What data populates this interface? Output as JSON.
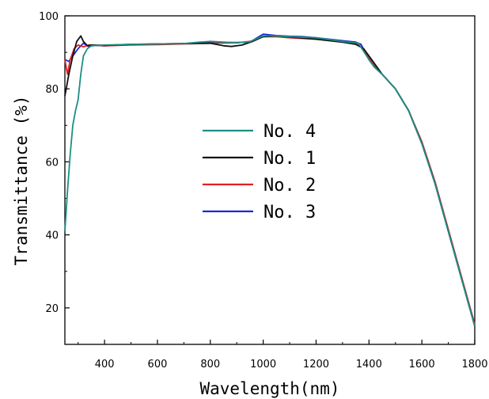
{
  "chart_data": {
    "type": "line",
    "title": "",
    "xlabel": "Wavelength(nm)",
    "ylabel": "Transmittance (%)",
    "xlim": [
      250,
      1800
    ],
    "ylim": [
      10,
      100
    ],
    "xticks": [
      400,
      600,
      800,
      1000,
      1200,
      1400,
      1600,
      1800
    ],
    "yticks": [
      20,
      40,
      60,
      80,
      100
    ],
    "grid": false,
    "legend_position": "center",
    "series": [
      {
        "name": "No. 4",
        "color": "#1a8f84",
        "points": [
          [
            250,
            41
          ],
          [
            260,
            52
          ],
          [
            270,
            62
          ],
          [
            280,
            70
          ],
          [
            290,
            74
          ],
          [
            300,
            77
          ],
          [
            310,
            84
          ],
          [
            320,
            89
          ],
          [
            335,
            91
          ],
          [
            350,
            91.8
          ],
          [
            400,
            92
          ],
          [
            500,
            92.2
          ],
          [
            600,
            92.3
          ],
          [
            700,
            92.4
          ],
          [
            760,
            92.8
          ],
          [
            800,
            93
          ],
          [
            850,
            92.8
          ],
          [
            900,
            92.6
          ],
          [
            950,
            92.9
          ],
          [
            1000,
            94.5
          ],
          [
            1050,
            94.5
          ],
          [
            1100,
            94.3
          ],
          [
            1200,
            94
          ],
          [
            1300,
            93
          ],
          [
            1360,
            92.5
          ],
          [
            1400,
            88
          ],
          [
            1420,
            86
          ],
          [
            1450,
            84
          ],
          [
            1500,
            80
          ],
          [
            1550,
            74
          ],
          [
            1600,
            65
          ],
          [
            1650,
            54
          ],
          [
            1700,
            41
          ],
          [
            1750,
            28
          ],
          [
            1800,
            15
          ]
        ]
      },
      {
        "name": "No. 1",
        "color": "#111111",
        "points": [
          [
            250,
            78
          ],
          [
            265,
            84
          ],
          [
            280,
            89
          ],
          [
            295,
            93
          ],
          [
            310,
            94.5
          ],
          [
            320,
            93
          ],
          [
            335,
            91.8
          ],
          [
            350,
            92
          ],
          [
            400,
            91.9
          ],
          [
            500,
            92.2
          ],
          [
            600,
            92.3
          ],
          [
            700,
            92.4
          ],
          [
            800,
            92.5
          ],
          [
            850,
            91.8
          ],
          [
            880,
            91.6
          ],
          [
            920,
            92
          ],
          [
            960,
            93
          ],
          [
            1000,
            94.3
          ],
          [
            1050,
            94.5
          ],
          [
            1100,
            94.2
          ],
          [
            1200,
            93.6
          ],
          [
            1300,
            92.8
          ],
          [
            1350,
            92.2
          ],
          [
            1380,
            91
          ],
          [
            1400,
            89
          ],
          [
            1420,
            87
          ],
          [
            1450,
            84
          ],
          [
            1500,
            80
          ],
          [
            1550,
            74
          ],
          [
            1600,
            65
          ],
          [
            1650,
            54
          ],
          [
            1700,
            41
          ],
          [
            1750,
            28
          ],
          [
            1800,
            15
          ]
        ]
      },
      {
        "name": "No. 2",
        "color": "#e0211f",
        "points": [
          [
            250,
            88
          ],
          [
            260,
            84
          ],
          [
            270,
            88
          ],
          [
            285,
            91
          ],
          [
            300,
            92
          ],
          [
            320,
            91.5
          ],
          [
            340,
            92
          ],
          [
            400,
            91.8
          ],
          [
            500,
            92
          ],
          [
            600,
            92.1
          ],
          [
            700,
            92.3
          ],
          [
            800,
            92.5
          ],
          [
            900,
            92.6
          ],
          [
            950,
            93
          ],
          [
            1000,
            94.3
          ],
          [
            1050,
            94.3
          ],
          [
            1100,
            94
          ],
          [
            1200,
            93.6
          ],
          [
            1300,
            92.8
          ],
          [
            1360,
            92.3
          ],
          [
            1400,
            88.5
          ],
          [
            1420,
            86.5
          ],
          [
            1450,
            84
          ],
          [
            1500,
            80
          ],
          [
            1550,
            74
          ],
          [
            1600,
            65.5
          ],
          [
            1650,
            54.5
          ],
          [
            1700,
            41.5
          ],
          [
            1750,
            28.5
          ],
          [
            1800,
            15.5
          ]
        ]
      },
      {
        "name": "No. 3",
        "color": "#1e28d6",
        "points": [
          [
            250,
            88
          ],
          [
            265,
            87.5
          ],
          [
            280,
            89
          ],
          [
            300,
            91
          ],
          [
            320,
            92.5
          ],
          [
            340,
            91.6
          ],
          [
            360,
            91.9
          ],
          [
            400,
            91.8
          ],
          [
            500,
            92.1
          ],
          [
            600,
            92.3
          ],
          [
            700,
            92.4
          ],
          [
            800,
            92.7
          ],
          [
            900,
            92.7
          ],
          [
            950,
            92.8
          ],
          [
            1000,
            95
          ],
          [
            1050,
            94.6
          ],
          [
            1100,
            94.4
          ],
          [
            1150,
            94.3
          ],
          [
            1200,
            94
          ],
          [
            1300,
            93.2
          ],
          [
            1350,
            92.8
          ],
          [
            1370,
            92.2
          ],
          [
            1400,
            88
          ],
          [
            1420,
            86
          ],
          [
            1450,
            84
          ],
          [
            1500,
            80
          ],
          [
            1550,
            74
          ],
          [
            1600,
            65
          ],
          [
            1650,
            54
          ],
          [
            1700,
            41
          ],
          [
            1750,
            28
          ],
          [
            1800,
            15
          ]
        ]
      }
    ]
  }
}
